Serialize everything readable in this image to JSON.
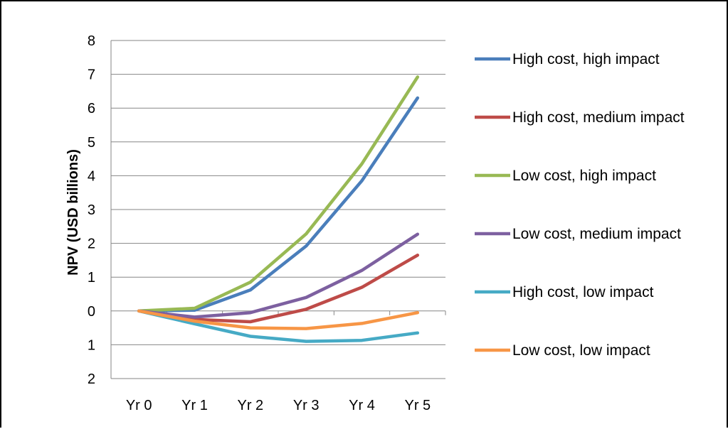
{
  "chart_data": {
    "type": "line",
    "title": "",
    "xlabel": "",
    "ylabel": "NPV (USD billions)",
    "categories": [
      "Yr 0",
      "Yr 1",
      "Yr 2",
      "Yr 3",
      "Yr 4",
      "Yr 5"
    ],
    "ylim": [
      -2,
      8
    ],
    "yticks": [
      {
        "value": 8,
        "label": "8"
      },
      {
        "value": 7,
        "label": "7"
      },
      {
        "value": 6,
        "label": "6"
      },
      {
        "value": 5,
        "label": "5"
      },
      {
        "value": 4,
        "label": "4"
      },
      {
        "value": 3,
        "label": "3"
      },
      {
        "value": 2,
        "label": "2"
      },
      {
        "value": 1,
        "label": "1"
      },
      {
        "value": 0,
        "label": "0"
      },
      {
        "value": -1,
        "label": "1",
        "color": "#ff0000"
      },
      {
        "value": -2,
        "label": "2",
        "color": "#ff0000"
      }
    ],
    "grid": "horizontal",
    "legend_position": "right",
    "series": [
      {
        "name": "High cost, high impact",
        "color": "#4a7ebb",
        "values": [
          0,
          0.02,
          0.62,
          1.92,
          3.85,
          6.3
        ]
      },
      {
        "name": "High cost, medium impact",
        "color": "#be4b48",
        "values": [
          0,
          -0.25,
          -0.32,
          0.05,
          0.7,
          1.65
        ]
      },
      {
        "name": "Low cost, high impact",
        "color": "#98b954",
        "values": [
          0,
          0.08,
          0.85,
          2.28,
          4.35,
          6.92
        ]
      },
      {
        "name": "Low cost, medium impact",
        "color": "#7d60a0",
        "values": [
          0,
          -0.18,
          -0.05,
          0.4,
          1.2,
          2.27
        ]
      },
      {
        "name": "High cost, low impact",
        "color": "#46aac5",
        "values": [
          0,
          -0.38,
          -0.75,
          -0.9,
          -0.87,
          -0.65
        ]
      },
      {
        "name": "Low cost, low impact",
        "color": "#f79646",
        "values": [
          0,
          -0.3,
          -0.5,
          -0.52,
          -0.37,
          -0.05
        ]
      }
    ]
  }
}
